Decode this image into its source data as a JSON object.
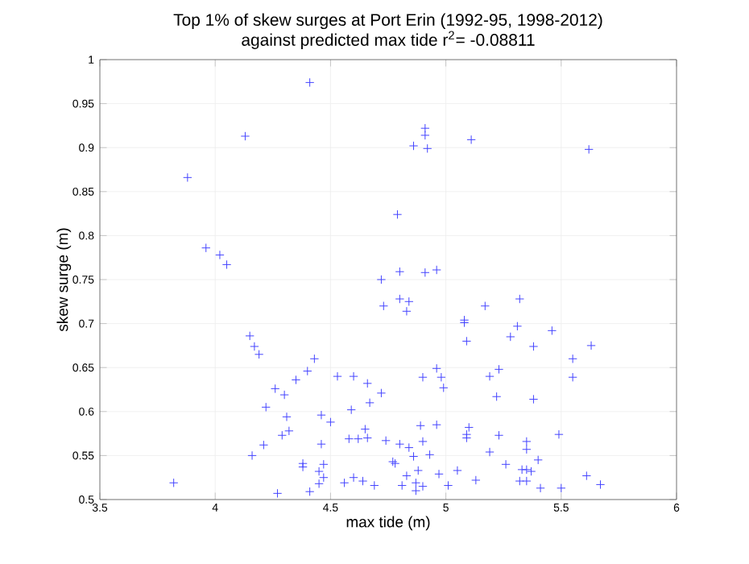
{
  "chart_data": {
    "type": "scatter",
    "title": "Top 1% of skew surges at Port Erin (1992-95, 1998-2012)\nagainst predicted max tide r$^{2}$= -0.08811",
    "xlabel": "max tide (m)",
    "ylabel": "skew surge (m)",
    "color": "#4444ff",
    "marker": "cross",
    "grid": true,
    "xlim": [
      3.5,
      6
    ],
    "ylim": [
      0.5,
      1
    ],
    "xticks": [
      3.5,
      4,
      4.5,
      5,
      5.5,
      6
    ],
    "yticks": [
      0.5,
      0.55,
      0.6,
      0.65,
      0.7,
      0.75,
      0.8,
      0.85,
      0.9,
      0.95,
      1
    ],
    "x": [
      3.88,
      4.41,
      4.13,
      3.96,
      4.02,
      4.05,
      4.72,
      4.91,
      4.91,
      4.86,
      4.92,
      5.11,
      5.62,
      4.79,
      4.8,
      4.91,
      4.96,
      4.73,
      4.15,
      4.17,
      4.19,
      4.43,
      4.4,
      4.35,
      4.53,
      4.6,
      4.66,
      4.72,
      4.26,
      4.3,
      4.67,
      4.22,
      4.59,
      4.31,
      4.46,
      4.5,
      4.32,
      4.29,
      4.65,
      4.58,
      4.62,
      4.66,
      4.74,
      4.21,
      4.46,
      4.16,
      4.38,
      4.38,
      4.47,
      4.45,
      4.47,
      4.45,
      3.82,
      4.27,
      4.41,
      4.56,
      4.6,
      4.64,
      4.69,
      4.8,
      4.84,
      4.83,
      5.32,
      5.17,
      5.08,
      5.08,
      5.31,
      5.46,
      5.28,
      5.09,
      5.38,
      5.63,
      5.55,
      4.96,
      5.23,
      4.9,
      4.98,
      5.19,
      5.55,
      4.99,
      5.22,
      5.38,
      4.89,
      4.96,
      5.1,
      5.09,
      5.09,
      5.23,
      5.49,
      4.8,
      4.9,
      4.84,
      5.35,
      5.35,
      5.19,
      4.93,
      4.86,
      5.4,
      4.77,
      4.78,
      5.26,
      4.88,
      5.05,
      5.33,
      5.35,
      5.37,
      4.83,
      4.97,
      5.61,
      5.13,
      5.32,
      5.35,
      4.87,
      4.81,
      4.9,
      5.01,
      5.67,
      4.87,
      5.41,
      5.5
    ],
    "values": [
      0.866,
      0.974,
      0.913,
      0.786,
      0.778,
      0.767,
      0.75,
      0.922,
      0.914,
      0.902,
      0.899,
      0.909,
      0.898,
      0.824,
      0.759,
      0.758,
      0.761,
      0.72,
      0.686,
      0.674,
      0.665,
      0.66,
      0.646,
      0.636,
      0.64,
      0.64,
      0.632,
      0.621,
      0.626,
      0.619,
      0.61,
      0.605,
      0.602,
      0.594,
      0.596,
      0.588,
      0.578,
      0.573,
      0.58,
      0.569,
      0.569,
      0.57,
      0.567,
      0.562,
      0.563,
      0.55,
      0.541,
      0.537,
      0.54,
      0.532,
      0.525,
      0.518,
      0.519,
      0.507,
      0.509,
      0.519,
      0.525,
      0.521,
      0.516,
      0.728,
      0.725,
      0.714,
      0.728,
      0.72,
      0.704,
      0.701,
      0.697,
      0.692,
      0.685,
      0.68,
      0.674,
      0.675,
      0.66,
      0.649,
      0.648,
      0.639,
      0.639,
      0.64,
      0.639,
      0.627,
      0.617,
      0.614,
      0.584,
      0.585,
      0.582,
      0.574,
      0.57,
      0.573,
      0.574,
      0.563,
      0.566,
      0.559,
      0.566,
      0.557,
      0.554,
      0.551,
      0.549,
      0.545,
      0.543,
      0.541,
      0.54,
      0.533,
      0.533,
      0.534,
      0.534,
      0.532,
      0.527,
      0.529,
      0.527,
      0.522,
      0.521,
      0.521,
      0.519,
      0.516,
      0.515,
      0.516,
      0.517,
      0.51,
      0.513,
      0.513
    ]
  }
}
